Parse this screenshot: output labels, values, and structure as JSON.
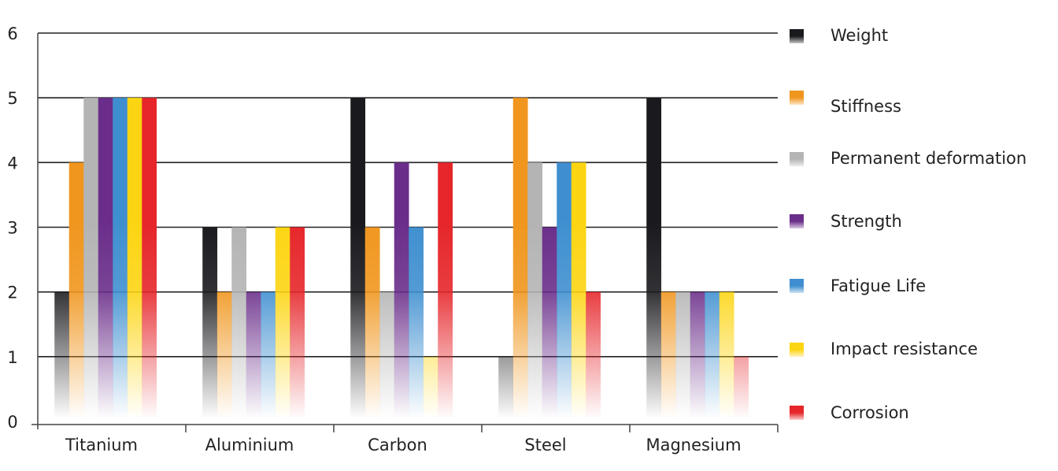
{
  "chart_data": {
    "type": "bar",
    "title": "",
    "xlabel": "",
    "ylabel": "",
    "ylim": [
      0,
      6
    ],
    "yticks": [
      "0",
      "1",
      "2",
      "3",
      "4",
      "5",
      "6"
    ],
    "grid": true,
    "legend_placement": "right",
    "categories": [
      "Titanium",
      "Aluminium",
      "Carbon",
      "Steel",
      "Magnesium"
    ],
    "series": [
      {
        "name": "Weight",
        "color": "#1a1a1e",
        "values": [
          2,
          3,
          5,
          1,
          5
        ]
      },
      {
        "name": "Stiffness",
        "color": "#f0961e",
        "values": [
          4,
          2,
          3,
          5,
          2
        ]
      },
      {
        "name": "Permanent deformation",
        "color": "#b4b4b4",
        "values": [
          5,
          3,
          2,
          4,
          2
        ]
      },
      {
        "name": "Strength",
        "color": "#6a2e8a",
        "values": [
          5,
          2,
          4,
          3,
          2
        ]
      },
      {
        "name": "Fatigue Life",
        "color": "#3f8fd0",
        "values": [
          5,
          2,
          3,
          4,
          2
        ]
      },
      {
        "name": "Impact resistance",
        "color": "#fcd512",
        "values": [
          5,
          3,
          1,
          4,
          2
        ]
      },
      {
        "name": "Corrosion",
        "color": "#e6262a",
        "values": [
          5,
          3,
          4,
          2,
          1
        ]
      }
    ]
  }
}
